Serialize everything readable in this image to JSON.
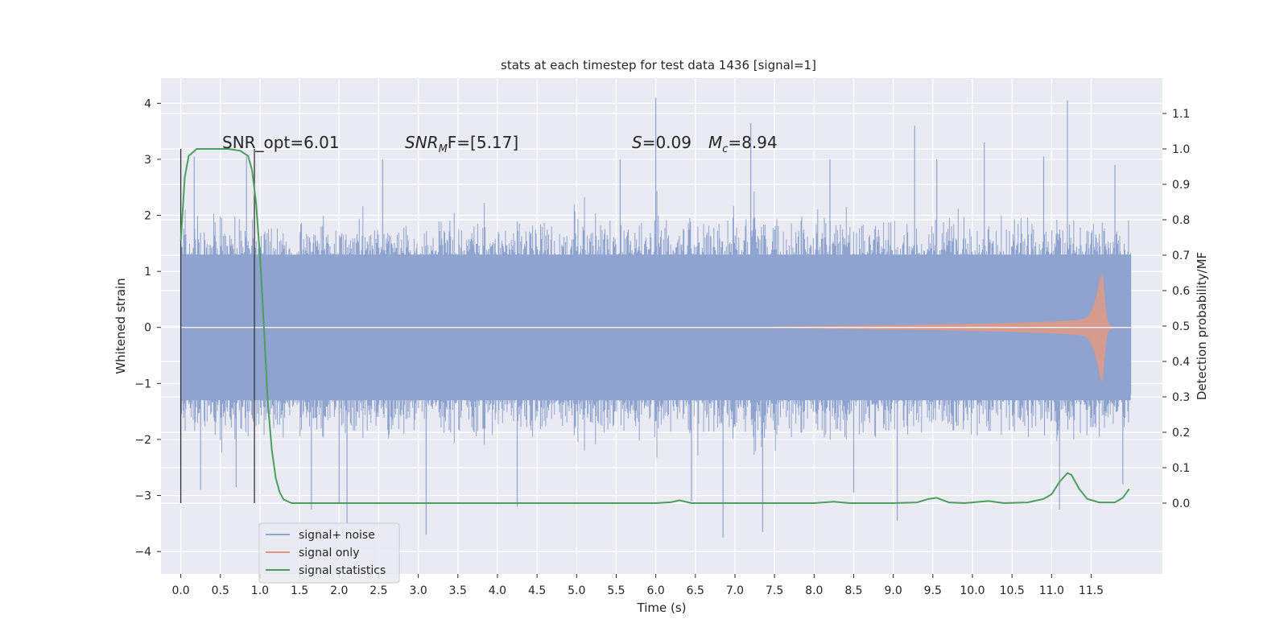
{
  "chart_data": {
    "type": "line",
    "title": "stats at each timestep for test data 1436 [signal=1]",
    "xlabel": "Time (s)",
    "ylabel": "Whitened strain",
    "y2label": "Detection probability/MF",
    "xlim": [
      -0.25,
      12.4
    ],
    "ylim": [
      -4.4,
      4.45
    ],
    "y2lim": [
      -0.2,
      1.2
    ],
    "grid": true,
    "legend_position": "lower-left",
    "x_ticks": [
      0.0,
      0.5,
      1.0,
      1.5,
      2.0,
      2.5,
      3.0,
      3.5,
      4.0,
      4.5,
      5.0,
      5.5,
      6.0,
      6.5,
      7.0,
      7.5,
      8.0,
      8.5,
      9.0,
      9.5,
      10.0,
      10.5,
      11.0,
      11.5
    ],
    "x_tick_labels": [
      "0.0",
      "0.5",
      "1.0",
      "1.5",
      "2.0",
      "2.5",
      "3.0",
      "3.5",
      "4.0",
      "4.5",
      "5.0",
      "5.5",
      "6.0",
      "6.5",
      "7.0",
      "7.5",
      "8.0",
      "8.5",
      "9.0",
      "9.5",
      "10.0",
      "10.5",
      "11.0",
      "11.5"
    ],
    "y_ticks": [
      4,
      3,
      2,
      1,
      0,
      -1,
      -2,
      -3,
      -4
    ],
    "y_tick_labels": [
      "4",
      "3",
      "2",
      "1",
      "0",
      "−1",
      "−2",
      "−3",
      "−4"
    ],
    "y2_ticks": [
      1.1,
      1.0,
      0.9,
      0.8,
      0.7,
      0.6,
      0.5,
      0.4,
      0.3,
      0.2,
      0.1,
      0.0
    ],
    "y2_tick_labels": [
      "1.1",
      "1.0",
      "0.9",
      "0.8",
      "0.7",
      "0.6",
      "0.5",
      "0.4",
      "0.3",
      "0.2",
      "0.1",
      "0.0"
    ],
    "annotations": {
      "snr_opt": "SNR_opt=6.01",
      "snr_mf_main": "SNR",
      "snr_mf_sub": "M",
      "snr_mf_rest": "F=[5.17]",
      "s_var": "S",
      "s_rest": "=0.09",
      "mc_var": "M",
      "mc_sub": "c",
      "mc_rest": "=8.94"
    },
    "vertical_markers_x": [
      0.0,
      0.93
    ],
    "series": [
      {
        "name": "signal+ noise",
        "color": "#8fa3cf",
        "kind": "noise",
        "x_range": [
          0.0,
          12.0
        ],
        "core_amplitude": 1.3,
        "typical_peak": 2.0,
        "extreme_peaks": [
          [
            0.17,
            3.05
          ],
          [
            0.25,
            -2.9
          ],
          [
            0.83,
            3.05
          ],
          [
            0.7,
            -2.85
          ],
          [
            1.65,
            -3.25
          ],
          [
            2.0,
            -3.15
          ],
          [
            2.1,
            -3.5
          ],
          [
            2.55,
            3.0
          ],
          [
            3.1,
            -3.7
          ],
          [
            4.25,
            -3.2
          ],
          [
            5.55,
            3.0
          ],
          [
            6.0,
            4.1
          ],
          [
            6.45,
            -3.1
          ],
          [
            6.85,
            -3.75
          ],
          [
            7.2,
            3.65
          ],
          [
            7.35,
            -3.65
          ],
          [
            8.2,
            3.0
          ],
          [
            8.5,
            -2.95
          ],
          [
            9.05,
            -3.45
          ],
          [
            9.27,
            3.6
          ],
          [
            9.55,
            3.0
          ],
          [
            10.15,
            3.3
          ],
          [
            10.9,
            3.05
          ],
          [
            11.1,
            -3.25
          ],
          [
            11.2,
            4.05
          ],
          [
            11.8,
            2.9
          ],
          [
            11.9,
            -2.8
          ]
        ]
      },
      {
        "name": "signal only",
        "color": "#dd9a86",
        "kind": "chirp",
        "start": 7.5,
        "merger": 11.65,
        "end": 12.0,
        "peak_amplitude": 0.95
      },
      {
        "name": "signal statistics",
        "color": "#4c9e5e",
        "axis": "y2",
        "points": [
          [
            0.0,
            0.74
          ],
          [
            0.05,
            0.92
          ],
          [
            0.1,
            0.98
          ],
          [
            0.2,
            1.0
          ],
          [
            0.4,
            1.0
          ],
          [
            0.6,
            1.0
          ],
          [
            0.75,
            0.995
          ],
          [
            0.85,
            0.98
          ],
          [
            0.9,
            0.94
          ],
          [
            0.95,
            0.85
          ],
          [
            1.0,
            0.7
          ],
          [
            1.05,
            0.5
          ],
          [
            1.1,
            0.28
          ],
          [
            1.15,
            0.15
          ],
          [
            1.2,
            0.07
          ],
          [
            1.25,
            0.03
          ],
          [
            1.3,
            0.01
          ],
          [
            1.4,
            0.0
          ],
          [
            2.0,
            0.0
          ],
          [
            3.0,
            0.0
          ],
          [
            4.0,
            0.0
          ],
          [
            5.0,
            0.0
          ],
          [
            6.0,
            0.0
          ],
          [
            6.2,
            0.003
          ],
          [
            6.3,
            0.008
          ],
          [
            6.45,
            0.0
          ],
          [
            7.0,
            0.0
          ],
          [
            8.0,
            0.0
          ],
          [
            8.25,
            0.004
          ],
          [
            8.45,
            0.0
          ],
          [
            9.0,
            0.0
          ],
          [
            9.3,
            0.002
          ],
          [
            9.45,
            0.012
          ],
          [
            9.55,
            0.015
          ],
          [
            9.7,
            0.002
          ],
          [
            9.9,
            0.0
          ],
          [
            10.2,
            0.006
          ],
          [
            10.4,
            0.0
          ],
          [
            10.7,
            0.002
          ],
          [
            10.9,
            0.012
          ],
          [
            11.0,
            0.025
          ],
          [
            11.1,
            0.06
          ],
          [
            11.2,
            0.085
          ],
          [
            11.25,
            0.08
          ],
          [
            11.35,
            0.04
          ],
          [
            11.45,
            0.012
          ],
          [
            11.6,
            0.002
          ],
          [
            11.8,
            0.002
          ],
          [
            11.9,
            0.015
          ],
          [
            11.98,
            0.04
          ]
        ]
      }
    ]
  }
}
